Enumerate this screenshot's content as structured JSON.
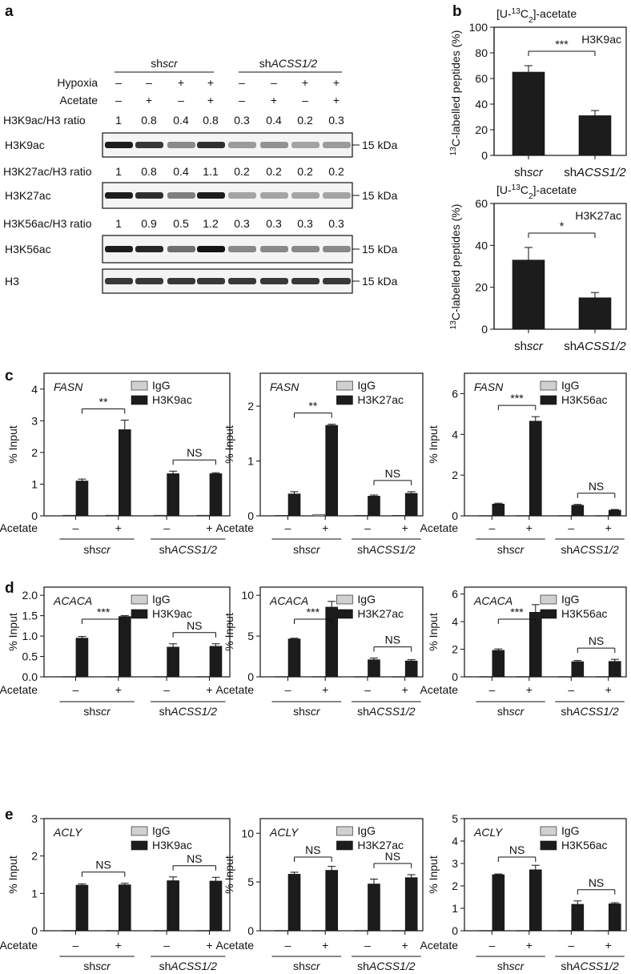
{
  "panel_a": {
    "label": "a",
    "group_labels": [
      {
        "pre": "sh",
        "it": "scr"
      },
      {
        "pre": "sh",
        "it": "ACSS1/2"
      }
    ],
    "rows": [
      {
        "name": "Hypoxia",
        "values": [
          "–",
          "–",
          "+",
          "+",
          "–",
          "–",
          "+",
          "+"
        ]
      },
      {
        "name": "Acetate",
        "values": [
          "–",
          "+",
          "–",
          "+",
          "–",
          "+",
          "–",
          "+"
        ]
      }
    ],
    "blots": [
      {
        "label": "H3K9ac",
        "ratio_label": "H3K9ac/H3 ratio",
        "ratios": [
          "1",
          "0.8",
          "0.4",
          "0.8",
          "0.3",
          "0.4",
          "0.2",
          "0.3"
        ],
        "kda": "15 kDa"
      },
      {
        "label": "H3K27ac",
        "ratio_label": "H3K27ac/H3 ratio",
        "ratios": [
          "1",
          "0.8",
          "0.4",
          "1.1",
          "0.2",
          "0.2",
          "0.2",
          "0.2"
        ],
        "kda": "15 kDa"
      },
      {
        "label": "H3K56ac",
        "ratio_label": "H3K56ac/H3 ratio",
        "ratios": [
          "1",
          "0.9",
          "0.5",
          "1.2",
          "0.3",
          "0.3",
          "0.3",
          "0.3"
        ],
        "kda": "15 kDa"
      },
      {
        "label": "H3",
        "ratio_label": "",
        "ratios": [],
        "kda": "15 kDa"
      }
    ]
  },
  "panel_b": {
    "label": "b",
    "title": "[U-13C2]-acetate",
    "ylabel": "13C-labelled peptides (%)"
  },
  "row_labels": {
    "c": "c",
    "d": "d",
    "e": "e"
  },
  "chip_common": {
    "acetate_label": "Acetate",
    "minus": "–",
    "plus": "+",
    "group_labels": [
      {
        "pre": "sh",
        "it": "scr"
      },
      {
        "pre": "sh",
        "it": "ACSS1/2"
      }
    ],
    "ylabel": "% Input",
    "legend_igg": "IgG"
  },
  "colors": {
    "bar": "#1c1c1c",
    "igg": "#d0d0d0",
    "axis": "#111111"
  },
  "chart_data": [
    {
      "panel": "b",
      "type": "bar",
      "title": "[U-13C2]-acetate",
      "annotation": "H3K9ac",
      "ylabel": "13C-labelled peptides (%)",
      "categories": [
        "shscr",
        "shACSS1/2"
      ],
      "values": [
        65,
        31
      ],
      "errors": [
        5,
        4
      ],
      "ylim": [
        0,
        100
      ],
      "yticks": [
        0,
        20,
        40,
        60,
        80,
        100
      ],
      "sig": "***"
    },
    {
      "panel": "b",
      "type": "bar",
      "title": "[U-13C2]-acetate",
      "annotation": "H3K27ac",
      "ylabel": "13C-labelled peptides (%)",
      "categories": [
        "shscr",
        "shACSS1/2"
      ],
      "values": [
        33,
        15
      ],
      "errors": [
        6,
        2.5
      ],
      "ylim": [
        0,
        60
      ],
      "yticks": [
        0,
        20,
        40,
        60
      ],
      "sig": "*"
    },
    {
      "panel": "c",
      "type": "bar",
      "gene": "FASN",
      "antibody": "H3K9ac",
      "ylim": [
        0,
        4.5
      ],
      "yticks": [
        0,
        1,
        2,
        3,
        4
      ],
      "igg": [
        0.02,
        0.02,
        0.02,
        0.02
      ],
      "values": [
        1.1,
        2.72,
        1.33,
        1.33
      ],
      "errors": [
        0.06,
        0.3,
        0.08,
        0.03
      ],
      "sig": [
        "**",
        "NS"
      ]
    },
    {
      "panel": "c",
      "type": "bar",
      "gene": "FASN",
      "antibody": "H3K27ac",
      "ylim": [
        0,
        2.6
      ],
      "yticks": [
        0,
        1,
        2
      ],
      "igg": [
        0.01,
        0.02,
        0.01,
        0.01
      ],
      "values": [
        0.4,
        1.65,
        0.36,
        0.41
      ],
      "errors": [
        0.04,
        0.02,
        0.02,
        0.03
      ],
      "sig": [
        "**",
        "NS"
      ]
    },
    {
      "panel": "c",
      "type": "bar",
      "gene": "FASN",
      "antibody": "H3K56ac",
      "ylim": [
        0,
        7
      ],
      "yticks": [
        0,
        2,
        4,
        6
      ],
      "igg": [
        0.02,
        0.02,
        0.02,
        0.02
      ],
      "values": [
        0.58,
        4.65,
        0.52,
        0.28
      ],
      "errors": [
        0.04,
        0.22,
        0.04,
        0.03
      ],
      "sig": [
        "***",
        "NS"
      ]
    },
    {
      "panel": "d",
      "type": "bar",
      "gene": "ACACA",
      "antibody": "H3K9ac",
      "ylim": [
        0,
        2.2
      ],
      "yticks": [
        0.0,
        0.5,
        1.0,
        1.5,
        2.0
      ],
      "igg": [
        0.01,
        0.01,
        0.01,
        0.01
      ],
      "values": [
        0.95,
        1.48,
        0.73,
        0.75
      ],
      "errors": [
        0.04,
        0.02,
        0.08,
        0.06
      ],
      "sig": [
        "***",
        "NS"
      ]
    },
    {
      "panel": "d",
      "type": "bar",
      "gene": "ACACA",
      "antibody": "H3K27ac",
      "ylim": [
        0,
        11
      ],
      "yticks": [
        0,
        5,
        10
      ],
      "igg": [
        0.03,
        0.05,
        0.03,
        0.03
      ],
      "values": [
        4.65,
        8.55,
        2.1,
        1.95
      ],
      "errors": [
        0.08,
        0.7,
        0.2,
        0.15
      ],
      "sig": [
        "***",
        "NS"
      ]
    },
    {
      "panel": "d",
      "type": "bar",
      "gene": "ACACA",
      "antibody": "H3K56ac",
      "ylim": [
        0,
        6.5
      ],
      "yticks": [
        0,
        2,
        4,
        6
      ],
      "igg": [
        0.02,
        0.02,
        0.02,
        0.02
      ],
      "values": [
        1.92,
        4.68,
        1.1,
        1.12
      ],
      "errors": [
        0.1,
        0.55,
        0.08,
        0.15
      ],
      "sig": [
        "***",
        "NS"
      ]
    },
    {
      "panel": "e",
      "type": "bar",
      "gene": "ACLY",
      "antibody": "H3K9ac",
      "ylim": [
        0,
        3
      ],
      "yticks": [
        0,
        1,
        2,
        3
      ],
      "igg": [
        0.01,
        0.01,
        0.01,
        0.01
      ],
      "values": [
        1.22,
        1.23,
        1.34,
        1.33
      ],
      "errors": [
        0.03,
        0.04,
        0.1,
        0.1
      ],
      "sig": [
        "NS",
        "NS"
      ]
    },
    {
      "panel": "e",
      "type": "bar",
      "gene": "ACLY",
      "antibody": "H3K27ac",
      "ylim": [
        0,
        11.5
      ],
      "yticks": [
        0,
        5,
        10
      ],
      "igg": [
        0.03,
        0.03,
        0.03,
        0.03
      ],
      "values": [
        5.8,
        6.2,
        4.8,
        5.45
      ],
      "errors": [
        0.2,
        0.4,
        0.5,
        0.3
      ],
      "sig": [
        "NS",
        "NS"
      ]
    },
    {
      "panel": "e",
      "type": "bar",
      "gene": "ACLY",
      "antibody": "H3K56ac",
      "ylim": [
        0,
        5
      ],
      "yticks": [
        0,
        1,
        2,
        3,
        4,
        5
      ],
      "igg": [
        0.01,
        0.01,
        0.01,
        0.01
      ],
      "values": [
        2.5,
        2.72,
        1.18,
        1.2
      ],
      "errors": [
        0.03,
        0.2,
        0.15,
        0.05
      ],
      "sig": [
        "NS",
        "NS"
      ]
    }
  ]
}
